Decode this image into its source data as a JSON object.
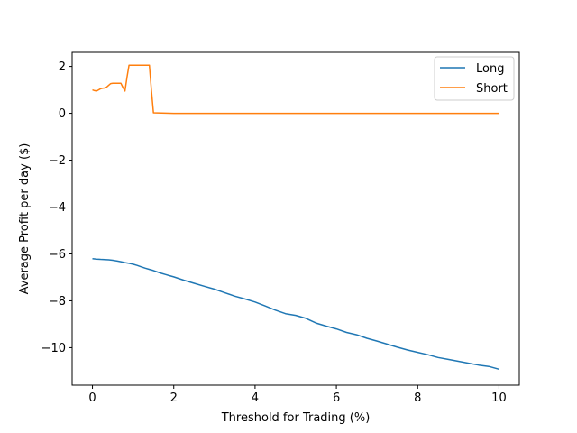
{
  "chart_data": {
    "type": "line",
    "title": "",
    "xlabel": "Threshold for Trading (%)",
    "ylabel": "Average Profit per day ($)",
    "xlim": [
      -0.5,
      10.5
    ],
    "ylim": [
      -11.6,
      2.6
    ],
    "xticks": [
      0,
      2,
      4,
      6,
      8,
      10
    ],
    "yticks": [
      2,
      0,
      -2,
      -4,
      -6,
      -8,
      -10
    ],
    "xtick_labels": [
      "0",
      "2",
      "4",
      "6",
      "8",
      "10"
    ],
    "ytick_labels": [
      "2",
      "0",
      "−2",
      "−4",
      "−6",
      "−8",
      "−10"
    ],
    "grid": false,
    "legend_position": "upper right",
    "series": [
      {
        "name": "Long",
        "color": "#1f77b4",
        "x": [
          0,
          0.1,
          0.2,
          0.3,
          0.4,
          0.5,
          0.6,
          0.7,
          0.8,
          0.9,
          1.0,
          1.1,
          1.2,
          1.3,
          1.4,
          1.5,
          1.6,
          1.7,
          1.8,
          1.9,
          2.0,
          2.25,
          2.5,
          2.75,
          3.0,
          3.25,
          3.5,
          3.75,
          4.0,
          4.25,
          4.5,
          4.75,
          5.0,
          5.25,
          5.5,
          5.75,
          6.0,
          6.25,
          6.5,
          6.75,
          7.0,
          7.25,
          7.5,
          7.75,
          8.0,
          8.25,
          8.5,
          8.75,
          9.0,
          9.25,
          9.5,
          9.75,
          10.0
        ],
        "y": [
          -6.2,
          -6.22,
          -6.23,
          -6.24,
          -6.25,
          -6.27,
          -6.3,
          -6.33,
          -6.37,
          -6.4,
          -6.44,
          -6.49,
          -6.55,
          -6.61,
          -6.66,
          -6.71,
          -6.77,
          -6.83,
          -6.88,
          -6.93,
          -6.98,
          -7.12,
          -7.25,
          -7.38,
          -7.5,
          -7.65,
          -7.8,
          -7.92,
          -8.05,
          -8.22,
          -8.4,
          -8.55,
          -8.62,
          -8.75,
          -8.95,
          -9.08,
          -9.2,
          -9.35,
          -9.45,
          -9.6,
          -9.72,
          -9.85,
          -9.98,
          -10.1,
          -10.2,
          -10.3,
          -10.42,
          -10.5,
          -10.58,
          -10.66,
          -10.74,
          -10.8,
          -10.92
        ]
      },
      {
        "name": "Short",
        "color": "#ff7f0e",
        "x": [
          0,
          0.05,
          0.1,
          0.15,
          0.2,
          0.25,
          0.3,
          0.35,
          0.4,
          0.45,
          0.5,
          0.55,
          0.6,
          0.65,
          0.7,
          0.75,
          0.8,
          0.85,
          0.9,
          0.95,
          1.0,
          1.1,
          1.2,
          1.3,
          1.4,
          1.45,
          1.5,
          2.0,
          3.0,
          4.0,
          5.0,
          6.0,
          7.0,
          8.0,
          9.0,
          10.0
        ],
        "y": [
          1.0,
          0.97,
          0.95,
          1.0,
          1.05,
          1.07,
          1.08,
          1.12,
          1.2,
          1.27,
          1.28,
          1.28,
          1.28,
          1.28,
          1.28,
          1.1,
          0.95,
          1.55,
          2.05,
          2.05,
          2.05,
          2.05,
          2.05,
          2.05,
          2.05,
          1.0,
          0.02,
          0.0,
          0.0,
          0.0,
          0.0,
          0.0,
          0.0,
          0.0,
          0.0,
          0.0
        ]
      }
    ]
  }
}
